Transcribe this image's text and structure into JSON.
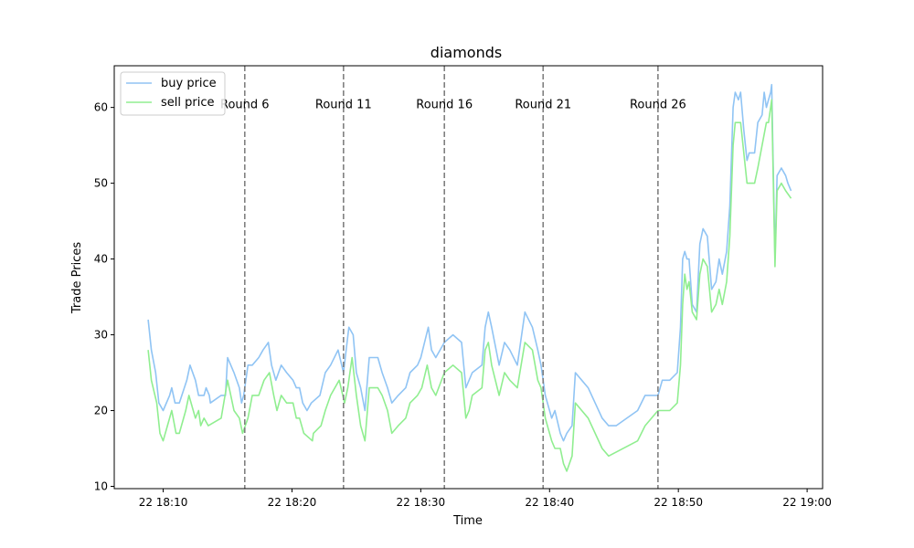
{
  "chart_data": {
    "type": "line",
    "title": "diamonds",
    "xlabel": "Time",
    "ylabel": "Trade Prices",
    "x_ticks": [
      "22 18:10",
      "22 18:20",
      "22 18:30",
      "22 18:40",
      "22 18:50",
      "22 19:00"
    ],
    "y_ticks": [
      "10",
      "20",
      "30",
      "40",
      "50",
      "60"
    ],
    "xlim": [
      "18:06:12",
      "19:01:12"
    ],
    "ylim": [
      9.7,
      65.5
    ],
    "grid": false,
    "legend_position": "top-left",
    "round_markers": [
      {
        "label": "Round 6",
        "x": "18:16:20"
      },
      {
        "label": "Round 11",
        "x": "18:24:00"
      },
      {
        "label": "Round 16",
        "x": "18:31:50"
      },
      {
        "label": "Round 21",
        "x": "18:39:30"
      },
      {
        "label": "Round 26",
        "x": "18:48:25"
      }
    ],
    "series": [
      {
        "name": "buy price",
        "color": "#90c4f4",
        "points": [
          [
            "18:08:50",
            32
          ],
          [
            "18:09:05",
            28
          ],
          [
            "18:09:25",
            25
          ],
          [
            "18:09:40",
            21
          ],
          [
            "18:10:00",
            20
          ],
          [
            "18:10:30",
            22
          ],
          [
            "18:10:40",
            23
          ],
          [
            "18:10:55",
            21
          ],
          [
            "18:11:15",
            21
          ],
          [
            "18:11:50",
            24
          ],
          [
            "18:12:05",
            26
          ],
          [
            "18:12:30",
            24
          ],
          [
            "18:12:45",
            22
          ],
          [
            "18:13:10",
            22
          ],
          [
            "18:13:20",
            23
          ],
          [
            "18:13:35",
            22
          ],
          [
            "18:13:40",
            21
          ],
          [
            "18:14:30",
            22
          ],
          [
            "18:14:50",
            22
          ],
          [
            "18:15:00",
            27
          ],
          [
            "18:15:30",
            25
          ],
          [
            "18:15:55",
            23
          ],
          [
            "18:16:05",
            21
          ],
          [
            "18:16:15",
            22
          ],
          [
            "18:16:35",
            26
          ],
          [
            "18:16:55",
            26
          ],
          [
            "18:17:25",
            27
          ],
          [
            "18:17:45",
            28
          ],
          [
            "18:18:10",
            29
          ],
          [
            "18:18:25",
            26
          ],
          [
            "18:18:45",
            24
          ],
          [
            "18:19:10",
            26
          ],
          [
            "18:19:35",
            25
          ],
          [
            "18:20:05",
            24
          ],
          [
            "18:20:20",
            23
          ],
          [
            "18:20:35",
            23
          ],
          [
            "18:20:50",
            21
          ],
          [
            "18:21:10",
            20
          ],
          [
            "18:21:30",
            21
          ],
          [
            "18:22:10",
            22
          ],
          [
            "18:22:35",
            25
          ],
          [
            "18:23:00",
            26
          ],
          [
            "18:23:35",
            28
          ],
          [
            "18:24:00",
            25
          ],
          [
            "18:24:25",
            31
          ],
          [
            "18:24:45",
            30
          ],
          [
            "18:25:00",
            25
          ],
          [
            "18:25:20",
            23
          ],
          [
            "18:25:40",
            20
          ],
          [
            "18:26:00",
            27
          ],
          [
            "18:26:40",
            27
          ],
          [
            "18:27:00",
            25
          ],
          [
            "18:27:25",
            23
          ],
          [
            "18:27:45",
            21
          ],
          [
            "18:28:15",
            22
          ],
          [
            "18:28:50",
            23
          ],
          [
            "18:29:10",
            25
          ],
          [
            "18:29:45",
            26
          ],
          [
            "18:30:00",
            27
          ],
          [
            "18:30:35",
            31
          ],
          [
            "18:30:50",
            28
          ],
          [
            "18:31:10",
            27
          ],
          [
            "18:31:50",
            29
          ],
          [
            "18:32:30",
            30
          ],
          [
            "18:33:10",
            29
          ],
          [
            "18:33:30",
            23
          ],
          [
            "18:33:45",
            24
          ],
          [
            "18:34:00",
            25
          ],
          [
            "18:34:45",
            26
          ],
          [
            "18:35:00",
            31
          ],
          [
            "18:35:15",
            33
          ],
          [
            "18:35:30",
            31
          ],
          [
            "18:36:05",
            26
          ],
          [
            "18:36:30",
            29
          ],
          [
            "18:36:55",
            28
          ],
          [
            "18:37:30",
            26
          ],
          [
            "18:38:05",
            33
          ],
          [
            "18:38:40",
            31
          ],
          [
            "18:39:05",
            28
          ],
          [
            "18:39:20",
            26
          ],
          [
            "18:39:40",
            22
          ],
          [
            "18:40:10",
            19
          ],
          [
            "18:40:25",
            20
          ],
          [
            "18:40:50",
            17
          ],
          [
            "18:41:05",
            16
          ],
          [
            "18:41:20",
            17
          ],
          [
            "18:41:45",
            18
          ],
          [
            "18:42:00",
            25
          ],
          [
            "18:42:30",
            24
          ],
          [
            "18:43:00",
            23
          ],
          [
            "18:44:05",
            19
          ],
          [
            "18:44:35",
            18
          ],
          [
            "18:45:10",
            18
          ],
          [
            "18:46:50",
            20
          ],
          [
            "18:47:25",
            22
          ],
          [
            "18:48:25",
            22
          ],
          [
            "18:48:45",
            24
          ],
          [
            "18:49:20",
            24
          ],
          [
            "18:49:55",
            25
          ],
          [
            "18:50:10",
            31
          ],
          [
            "18:50:20",
            40
          ],
          [
            "18:50:30",
            41
          ],
          [
            "18:50:40",
            40
          ],
          [
            "18:50:50",
            40
          ],
          [
            "18:51:05",
            34
          ],
          [
            "18:51:25",
            33
          ],
          [
            "18:51:40",
            42
          ],
          [
            "18:51:55",
            44
          ],
          [
            "18:52:15",
            43
          ],
          [
            "18:52:35",
            36
          ],
          [
            "18:52:55",
            37
          ],
          [
            "18:53:10",
            40
          ],
          [
            "18:53:25",
            38
          ],
          [
            "18:53:45",
            41
          ],
          [
            "18:54:00",
            47
          ],
          [
            "18:54:15",
            60
          ],
          [
            "18:54:25",
            62
          ],
          [
            "18:54:40",
            61
          ],
          [
            "18:54:50",
            62
          ],
          [
            "18:55:05",
            57
          ],
          [
            "18:55:20",
            53
          ],
          [
            "18:55:30",
            54
          ],
          [
            "18:55:55",
            54
          ],
          [
            "18:56:10",
            58
          ],
          [
            "18:56:30",
            59
          ],
          [
            "18:56:40",
            62
          ],
          [
            "18:56:50",
            60
          ],
          [
            "18:57:00",
            61
          ],
          [
            "18:57:10",
            62
          ],
          [
            "18:57:15",
            63
          ],
          [
            "18:57:30",
            40
          ],
          [
            "18:57:40",
            51
          ],
          [
            "18:58:00",
            52
          ],
          [
            "18:58:20",
            51
          ],
          [
            "18:58:30",
            50
          ],
          [
            "18:58:45",
            49
          ]
        ]
      },
      {
        "name": "sell price",
        "color": "#90ee90",
        "points": [
          [
            "18:08:50",
            28
          ],
          [
            "18:09:05",
            24
          ],
          [
            "18:09:30",
            21
          ],
          [
            "18:09:45",
            17
          ],
          [
            "18:10:00",
            16
          ],
          [
            "18:10:20",
            18
          ],
          [
            "18:10:40",
            20
          ],
          [
            "18:11:00",
            17
          ],
          [
            "18:11:15",
            17
          ],
          [
            "18:11:45",
            20
          ],
          [
            "18:12:00",
            22
          ],
          [
            "18:12:30",
            19
          ],
          [
            "18:12:45",
            20
          ],
          [
            "18:12:55",
            18
          ],
          [
            "18:13:10",
            19
          ],
          [
            "18:13:30",
            18
          ],
          [
            "18:14:30",
            19
          ],
          [
            "18:15:00",
            24
          ],
          [
            "18:15:30",
            20
          ],
          [
            "18:15:55",
            19
          ],
          [
            "18:16:10",
            17
          ],
          [
            "18:16:35",
            19
          ],
          [
            "18:16:55",
            22
          ],
          [
            "18:17:25",
            22
          ],
          [
            "18:17:50",
            24
          ],
          [
            "18:18:15",
            25
          ],
          [
            "18:18:35",
            22
          ],
          [
            "18:18:50",
            20
          ],
          [
            "18:19:10",
            22
          ],
          [
            "18:19:35",
            21
          ],
          [
            "18:20:05",
            21
          ],
          [
            "18:20:20",
            19
          ],
          [
            "18:20:35",
            19
          ],
          [
            "18:20:55",
            17
          ],
          [
            "18:21:35",
            16
          ],
          [
            "18:21:40",
            17
          ],
          [
            "18:22:15",
            18
          ],
          [
            "18:22:35",
            20
          ],
          [
            "18:23:00",
            22
          ],
          [
            "18:23:40",
            24
          ],
          [
            "18:24:05",
            21
          ],
          [
            "18:24:20",
            23
          ],
          [
            "18:24:40",
            27
          ],
          [
            "18:25:00",
            22
          ],
          [
            "18:25:20",
            18
          ],
          [
            "18:25:40",
            16
          ],
          [
            "18:26:00",
            23
          ],
          [
            "18:26:40",
            23
          ],
          [
            "18:27:00",
            22
          ],
          [
            "18:27:25",
            20
          ],
          [
            "18:27:45",
            17
          ],
          [
            "18:28:15",
            18
          ],
          [
            "18:28:50",
            19
          ],
          [
            "18:29:10",
            21
          ],
          [
            "18:29:45",
            22
          ],
          [
            "18:30:05",
            23
          ],
          [
            "18:30:30",
            26
          ],
          [
            "18:30:50",
            23
          ],
          [
            "18:31:10",
            22
          ],
          [
            "18:31:50",
            25
          ],
          [
            "18:32:30",
            26
          ],
          [
            "18:33:10",
            25
          ],
          [
            "18:33:30",
            19
          ],
          [
            "18:33:45",
            20
          ],
          [
            "18:34:00",
            22
          ],
          [
            "18:34:45",
            23
          ],
          [
            "18:35:00",
            28
          ],
          [
            "18:35:15",
            29
          ],
          [
            "18:35:30",
            26
          ],
          [
            "18:36:05",
            22
          ],
          [
            "18:36:30",
            25
          ],
          [
            "18:36:55",
            24
          ],
          [
            "18:37:30",
            23
          ],
          [
            "18:38:05",
            29
          ],
          [
            "18:38:40",
            28
          ],
          [
            "18:39:05",
            24
          ],
          [
            "18:39:20",
            23
          ],
          [
            "18:39:40",
            19
          ],
          [
            "18:40:10",
            16
          ],
          [
            "18:40:25",
            15
          ],
          [
            "18:40:50",
            15
          ],
          [
            "18:41:05",
            13
          ],
          [
            "18:41:20",
            12
          ],
          [
            "18:41:45",
            14
          ],
          [
            "18:42:00",
            21
          ],
          [
            "18:42:30",
            20
          ],
          [
            "18:43:00",
            19
          ],
          [
            "18:44:05",
            15
          ],
          [
            "18:44:35",
            14
          ],
          [
            "18:46:50",
            16
          ],
          [
            "18:47:25",
            18
          ],
          [
            "18:48:25",
            20
          ],
          [
            "18:48:45",
            20
          ],
          [
            "18:49:20",
            20
          ],
          [
            "18:49:55",
            21
          ],
          [
            "18:50:10",
            26
          ],
          [
            "18:50:20",
            34
          ],
          [
            "18:50:30",
            38
          ],
          [
            "18:50:40",
            36
          ],
          [
            "18:50:50",
            37
          ],
          [
            "18:51:05",
            33
          ],
          [
            "18:51:25",
            32
          ],
          [
            "18:51:40",
            38
          ],
          [
            "18:51:55",
            40
          ],
          [
            "18:52:15",
            39
          ],
          [
            "18:52:35",
            33
          ],
          [
            "18:52:55",
            34
          ],
          [
            "18:53:10",
            36
          ],
          [
            "18:53:25",
            34
          ],
          [
            "18:53:45",
            37
          ],
          [
            "18:54:00",
            43
          ],
          [
            "18:54:15",
            55
          ],
          [
            "18:54:25",
            58
          ],
          [
            "18:54:50",
            58
          ],
          [
            "18:55:05",
            54
          ],
          [
            "18:55:20",
            50
          ],
          [
            "18:55:55",
            50
          ],
          [
            "18:56:10",
            52
          ],
          [
            "18:56:30",
            55
          ],
          [
            "18:56:50",
            58
          ],
          [
            "18:57:00",
            58
          ],
          [
            "18:57:15",
            61
          ],
          [
            "18:57:30",
            39
          ],
          [
            "18:57:40",
            49
          ],
          [
            "18:58:00",
            50
          ],
          [
            "18:58:20",
            49
          ],
          [
            "18:58:45",
            48
          ]
        ]
      }
    ]
  }
}
